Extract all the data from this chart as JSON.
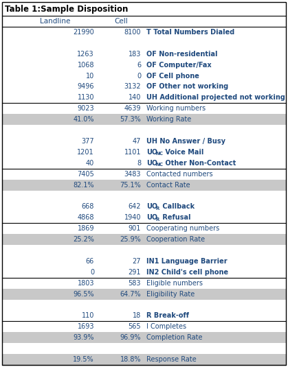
{
  "title": "Table 1:Sample Disposition",
  "rows": [
    {
      "landline": "21990",
      "cell": "8100",
      "label": "T Total Numbers Dialed",
      "bold": true,
      "bg": false,
      "sep_below": false
    },
    {
      "landline": "",
      "cell": "",
      "label": "",
      "bold": false,
      "bg": false,
      "sep_below": false
    },
    {
      "landline": "1263",
      "cell": "183",
      "label": "OF Non-residential",
      "bold": true,
      "bg": false,
      "sep_below": false
    },
    {
      "landline": "1068",
      "cell": "6",
      "label": "OF Computer/Fax",
      "bold": true,
      "bg": false,
      "sep_below": false
    },
    {
      "landline": "10",
      "cell": "0",
      "label": "OF Cell phone",
      "bold": true,
      "bg": false,
      "sep_below": false
    },
    {
      "landline": "9496",
      "cell": "3132",
      "label": "OF Other not working",
      "bold": true,
      "bg": false,
      "sep_below": false
    },
    {
      "landline": "1130",
      "cell": "140",
      "label": "UH Additional projected not working",
      "bold": true,
      "bg": false,
      "sep_below": true
    },
    {
      "landline": "9023",
      "cell": "4639",
      "label": "Working numbers",
      "bold": false,
      "bg": false,
      "sep_below": false
    },
    {
      "landline": "41.0%",
      "cell": "57.3%",
      "label": "Working Rate",
      "bold": false,
      "bg": true,
      "sep_below": false
    },
    {
      "landline": "",
      "cell": "",
      "label": "",
      "bold": false,
      "bg": false,
      "sep_below": false
    },
    {
      "landline": "377",
      "cell": "47",
      "label": "UH No Answer / Busy",
      "bold": true,
      "bg": false,
      "sep_below": false
    },
    {
      "landline": "1201",
      "cell": "1101",
      "label": "UO_NC Voice Mail",
      "bold": true,
      "bg": false,
      "sep_below": false
    },
    {
      "landline": "40",
      "cell": "8",
      "label": "UO_NC Other Non-Contact",
      "bold": true,
      "bg": false,
      "sep_below": true
    },
    {
      "landline": "7405",
      "cell": "3483",
      "label": "Contacted numbers",
      "bold": false,
      "bg": false,
      "sep_below": false
    },
    {
      "landline": "82.1%",
      "cell": "75.1%",
      "label": "Contact Rate",
      "bold": false,
      "bg": true,
      "sep_below": false
    },
    {
      "landline": "",
      "cell": "",
      "label": "",
      "bold": false,
      "bg": false,
      "sep_below": false
    },
    {
      "landline": "668",
      "cell": "642",
      "label": "UO_R Callback",
      "bold": true,
      "bg": false,
      "sep_below": false
    },
    {
      "landline": "4868",
      "cell": "1940",
      "label": "UO_R Refusal",
      "bold": true,
      "bg": false,
      "sep_below": true
    },
    {
      "landline": "1869",
      "cell": "901",
      "label": "Cooperating numbers",
      "bold": false,
      "bg": false,
      "sep_below": false
    },
    {
      "landline": "25.2%",
      "cell": "25.9%",
      "label": "Cooperation Rate",
      "bold": false,
      "bg": true,
      "sep_below": false
    },
    {
      "landline": "",
      "cell": "",
      "label": "",
      "bold": false,
      "bg": false,
      "sep_below": false
    },
    {
      "landline": "66",
      "cell": "27",
      "label": "IN1 Language Barrier",
      "bold": true,
      "bg": false,
      "sep_below": false
    },
    {
      "landline": "0",
      "cell": "291",
      "label": "IN2 Child's cell phone",
      "bold": true,
      "bg": false,
      "sep_below": true
    },
    {
      "landline": "1803",
      "cell": "583",
      "label": "Eligible numbers",
      "bold": false,
      "bg": false,
      "sep_below": false
    },
    {
      "landline": "96.5%",
      "cell": "64.7%",
      "label": "Eligibility Rate",
      "bold": false,
      "bg": true,
      "sep_below": false
    },
    {
      "landline": "",
      "cell": "",
      "label": "",
      "bold": false,
      "bg": false,
      "sep_below": false
    },
    {
      "landline": "110",
      "cell": "18",
      "label": "R Break-off",
      "bold": true,
      "bg": false,
      "sep_below": true
    },
    {
      "landline": "1693",
      "cell": "565",
      "label": "I Completes",
      "bold": false,
      "bg": false,
      "sep_below": false
    },
    {
      "landline": "93.9%",
      "cell": "96.9%",
      "label": "Completion Rate",
      "bold": false,
      "bg": true,
      "sep_below": false
    },
    {
      "landline": "",
      "cell": "",
      "label": "",
      "bold": false,
      "bg": false,
      "sep_below": false
    },
    {
      "landline": "19.5%",
      "cell": "18.8%",
      "label": "Response Rate",
      "bold": false,
      "bg": true,
      "sep_below": false
    }
  ],
  "text_color": "#1f497d",
  "gray_bg": "#c8c8c8",
  "font_size": 7.0,
  "title_font_size": 8.5,
  "header_font_size": 7.5
}
